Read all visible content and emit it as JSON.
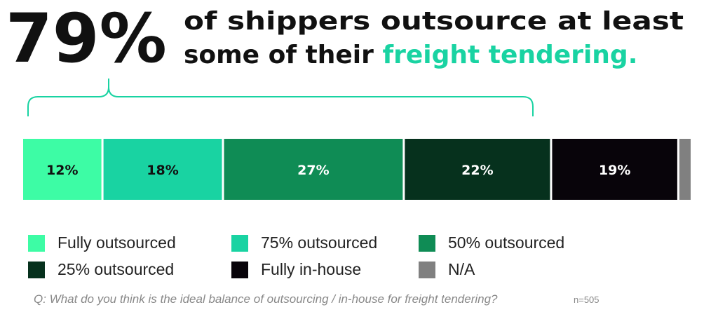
{
  "chart_data": {
    "type": "stacked-bar",
    "headline": {
      "stat": "79%",
      "line1": "of shippers outsource at least",
      "line2": "some of their",
      "highlight": "freight tendering."
    },
    "series": [
      {
        "name": "Fully outsourced",
        "color": "#3dfca5",
        "values": [
          12
        ],
        "value_labels": [
          "12%"
        ]
      },
      {
        "name": "75% outsourced",
        "color": "#19d3a2",
        "values": [
          18
        ],
        "value_labels": [
          "18%"
        ]
      },
      {
        "name": "50% outsourced",
        "color": "#0f8c55",
        "values": [
          27
        ],
        "value_labels": [
          "27%"
        ]
      },
      {
        "name": "25% outsourced",
        "color": "#06311d",
        "values": [
          22
        ],
        "value_labels": [
          "22%"
        ]
      },
      {
        "name": "Fully in-house",
        "color": "#08040a",
        "values": [
          19
        ],
        "value_labels": [
          "19%"
        ]
      },
      {
        "name": "N/A",
        "color": "#808080",
        "values": [
          2
        ]
      }
    ],
    "xlim": [
      0,
      100
    ],
    "question": "Q: What do you think is the ideal balance of outsourcing / in-house for freight tendering?",
    "sample": "n=505"
  }
}
